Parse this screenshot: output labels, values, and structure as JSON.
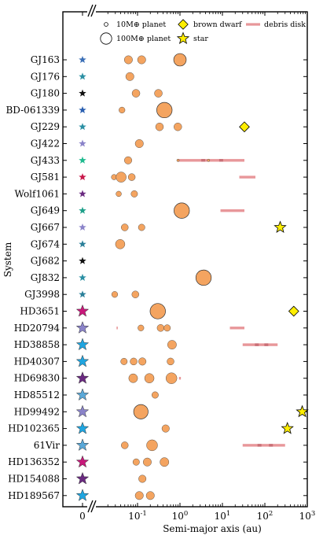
{
  "chart_data": {
    "type": "scatter",
    "xlabel": "Semi-major axis (au)",
    "ylabel": "System",
    "x_scale": "log",
    "xlim": [
      0.02,
      1000
    ],
    "x_ticks": [
      "0",
      "10^{-1}",
      "10^{0}",
      "10^{1}",
      "10^{2}",
      "10^{3}"
    ],
    "legend": {
      "placement": "top",
      "entries": [
        {
          "key": "planet10",
          "label": "10M⊕ planet"
        },
        {
          "key": "planet100",
          "label": "100M⊕ planet"
        },
        {
          "key": "brown_dwarf",
          "label": "brown dwarf"
        },
        {
          "key": "star",
          "label": "star"
        },
        {
          "key": "debris_disk",
          "label": "debris disk"
        }
      ]
    },
    "colors": {
      "planet": "#f4a460",
      "brown_dwarf": "#ffee00",
      "star_companion": "#ffee00",
      "debris_disk": "#e8979a",
      "debris_disk_dark": "#c96f76"
    },
    "systems": [
      {
        "name": "GJ163",
        "star_color": "#3b6fb6",
        "star_size": "small",
        "planets": [
          {
            "a": 0.061,
            "mass": 8
          },
          {
            "a": 0.125,
            "mass": 8
          },
          {
            "a": 1.0,
            "mass": 25
          }
        ]
      },
      {
        "name": "GJ176",
        "star_color": "#2a8fa3",
        "star_size": "small",
        "planets": [
          {
            "a": 0.066,
            "mass": 8
          }
        ]
      },
      {
        "name": "GJ180",
        "star_color": "#111111",
        "star_size": "small",
        "planets": [
          {
            "a": 0.092,
            "mass": 7
          },
          {
            "a": 0.31,
            "mass": 7
          }
        ]
      },
      {
        "name": "BD-061339",
        "star_color": "#2a5fb0",
        "star_size": "small",
        "planets": [
          {
            "a": 0.043,
            "mass": 3
          },
          {
            "a": 0.43,
            "mass": 50
          }
        ]
      },
      {
        "name": "GJ229",
        "star_color": "#2a8fa3",
        "star_size": "small",
        "planets": [
          {
            "a": 0.33,
            "mass": 7
          },
          {
            "a": 0.89,
            "mass": 7
          }
        ],
        "brown_dwarfs": [
          {
            "a": 33
          }
        ]
      },
      {
        "name": "GJ422",
        "star_color": "#8a83c9",
        "star_size": "small",
        "planets": [
          {
            "a": 0.11,
            "mass": 8
          }
        ]
      },
      {
        "name": "GJ433",
        "star_color": "#1fba8f",
        "star_size": "small",
        "planets": [
          {
            "a": 0.06,
            "mass": 6
          },
          {
            "a": 0.9,
            "mass": 0
          },
          {
            "a": 4.7,
            "mass": 0
          }
        ],
        "debris_disks": [
          {
            "a_min": 0.9,
            "a_max": 33
          }
        ]
      },
      {
        "name": "GJ581",
        "star_color": "#c8184a",
        "star_size": "small",
        "planets": [
          {
            "a": 0.028,
            "mass": 2
          },
          {
            "a": 0.041,
            "mass": 15
          },
          {
            "a": 0.073,
            "mass": 5
          }
        ],
        "debris_disks": [
          {
            "a_min": 25,
            "a_max": 60
          }
        ]
      },
      {
        "name": "Wolf1061",
        "star_color": "#6a2a80",
        "star_size": "small",
        "planets": [
          {
            "a": 0.036,
            "mass": 2
          },
          {
            "a": 0.084,
            "mass": 4
          }
        ]
      },
      {
        "name": "GJ649",
        "star_color": "#1fa08a",
        "star_size": "small",
        "planets": [
          {
            "a": 1.1,
            "mass": 100
          }
        ],
        "debris_disks": [
          {
            "a_min": 9,
            "a_max": 33
          }
        ]
      },
      {
        "name": "GJ667",
        "star_color": "#8a83c9",
        "star_size": "small",
        "planets": [
          {
            "a": 0.05,
            "mass": 5
          },
          {
            "a": 0.125,
            "mass": 4
          }
        ],
        "stars": [
          {
            "a": 230
          }
        ]
      },
      {
        "name": "GJ674",
        "star_color": "#2a7f99",
        "star_size": "small",
        "planets": [
          {
            "a": 0.039,
            "mass": 12
          }
        ]
      },
      {
        "name": "GJ682",
        "star_color": "#111111",
        "star_size": "small",
        "planets": []
      },
      {
        "name": "GJ832",
        "star_color": "#2a8fa3",
        "star_size": "small",
        "planets": [
          {
            "a": 3.6,
            "mass": 200
          }
        ]
      },
      {
        "name": "GJ3998",
        "star_color": "#2a7f99",
        "star_size": "small",
        "planets": [
          {
            "a": 0.029,
            "mass": 3
          },
          {
            "a": 0.089,
            "mass": 5
          }
        ]
      },
      {
        "name": "HD3651",
        "star_color": "#c8187a",
        "star_size": "large",
        "planets": [
          {
            "a": 0.3,
            "mass": 60
          }
        ],
        "brown_dwarfs": [
          {
            "a": 480
          }
        ]
      },
      {
        "name": "HD20794",
        "star_color": "#8a83c9",
        "star_size": "large",
        "planets": [
          {
            "a": 0.12,
            "mass": 3
          },
          {
            "a": 0.35,
            "mass": 5
          },
          {
            "a": 0.5,
            "mass": 4
          }
        ],
        "debris_disks": [
          {
            "a_min": 0.032,
            "a_max": 0.034
          },
          {
            "a_min": 15,
            "a_max": 33
          }
        ]
      },
      {
        "name": "HD38858",
        "star_color": "#1fa5e0",
        "star_size": "large",
        "planets": [
          {
            "a": 0.65,
            "mass": 10
          }
        ],
        "debris_disks": [
          {
            "a_min": 30,
            "a_max": 200
          }
        ]
      },
      {
        "name": "HD40307",
        "star_color": "#1fa5e0",
        "star_size": "large",
        "planets": [
          {
            "a": 0.048,
            "mass": 4
          },
          {
            "a": 0.081,
            "mass": 5
          },
          {
            "a": 0.13,
            "mass": 6
          },
          {
            "a": 0.6,
            "mass": 5
          }
        ]
      },
      {
        "name": "HD69830",
        "star_color": "#6a2a80",
        "star_size": "large",
        "planets": [
          {
            "a": 0.079,
            "mass": 10
          },
          {
            "a": 0.19,
            "mass": 12
          },
          {
            "a": 0.63,
            "mass": 18
          }
        ],
        "debris_disks": [
          {
            "a_min": 0.95,
            "a_max": 1.05
          }
        ]
      },
      {
        "name": "HD85512",
        "star_color": "#5aa8d8",
        "star_size": "large",
        "planets": [
          {
            "a": 0.26,
            "mass": 4
          }
        ]
      },
      {
        "name": "HD99492",
        "star_color": "#8a83c9",
        "star_size": "large",
        "planets": [
          {
            "a": 0.12,
            "mass": 36
          }
        ],
        "stars": [
          {
            "a": 760
          }
        ]
      },
      {
        "name": "HD102365",
        "star_color": "#1fa5e0",
        "star_size": "large",
        "planets": [
          {
            "a": 0.46,
            "mass": 6
          }
        ],
        "stars": [
          {
            "a": 340
          }
        ]
      },
      {
        "name": "61Vir",
        "star_color": "#5aa8d8",
        "star_size": "large",
        "planets": [
          {
            "a": 0.05,
            "mass": 5
          },
          {
            "a": 0.22,
            "mass": 18
          }
        ],
        "debris_disks": [
          {
            "a_min": 30,
            "a_max": 300
          }
        ]
      },
      {
        "name": "HD136352",
        "star_color": "#c8187a",
        "star_size": "large",
        "planets": [
          {
            "a": 0.093,
            "mass": 4
          },
          {
            "a": 0.17,
            "mass": 8
          },
          {
            "a": 0.43,
            "mass": 10
          }
        ]
      },
      {
        "name": "HD154088",
        "star_color": "#6a2a80",
        "star_size": "large",
        "planets": [
          {
            "a": 0.13,
            "mass": 6
          }
        ]
      },
      {
        "name": "HD189567",
        "star_color": "#1fa5e0",
        "star_size": "large",
        "planets": [
          {
            "a": 0.11,
            "mass": 8
          },
          {
            "a": 0.2,
            "mass": 8
          }
        ]
      }
    ]
  }
}
